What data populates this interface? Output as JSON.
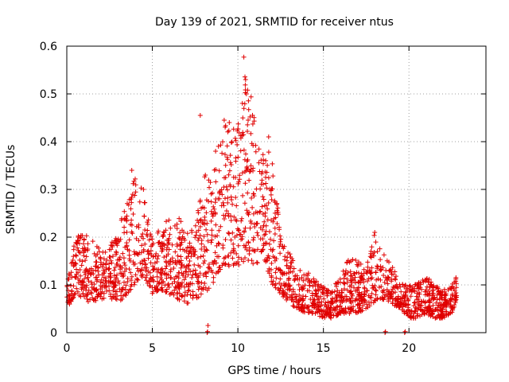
{
  "chart_data": {
    "type": "scatter",
    "title": "Day 139 of 2021, SRMTID for receiver ntus",
    "xlabel": "GPS time / hours",
    "ylabel": "SRMTID / TECUs",
    "xlim": [
      0,
      24.5
    ],
    "ylim": [
      0,
      0.6
    ],
    "x_ticks": [
      0,
      5,
      10,
      15,
      20
    ],
    "x_tick_labels": [
      "0",
      "5",
      "10",
      "15",
      "20"
    ],
    "y_ticks": [
      0,
      0.1,
      0.2,
      0.3,
      0.4,
      0.5,
      0.6
    ],
    "y_tick_labels": [
      "0",
      "0.1",
      "0.2",
      "0.3",
      "0.4",
      "0.5",
      "0.6"
    ],
    "grid": true,
    "marker": "+",
    "color": "#e00000",
    "series": [
      {
        "name": "SRMTID",
        "envelope": {
          "x": [
            0,
            0.5,
            1,
            1.5,
            2,
            2.5,
            3,
            3.5,
            4,
            4.5,
            5,
            5.5,
            6,
            6.5,
            7,
            7.5,
            8,
            8.5,
            9,
            9.5,
            10,
            10.5,
            11,
            11.5,
            12,
            12.5,
            13,
            13.5,
            14,
            14.5,
            15,
            15.5,
            16,
            16.5,
            17,
            17.5,
            18,
            18.5,
            19,
            19.5,
            20,
            20.5,
            21,
            21.5,
            22,
            22.5,
            22.8
          ],
          "low": [
            0.05,
            0.08,
            0.07,
            0.06,
            0.07,
            0.07,
            0.06,
            0.08,
            0.1,
            0.12,
            0.08,
            0.09,
            0.08,
            0.07,
            0.06,
            0.07,
            0.08,
            0.1,
            0.12,
            0.14,
            0.14,
            0.15,
            0.14,
            0.16,
            0.1,
            0.08,
            0.06,
            0.05,
            0.04,
            0.04,
            0.03,
            0.03,
            0.04,
            0.04,
            0.04,
            0.05,
            0.06,
            0.07,
            0.06,
            0.05,
            0.03,
            0.03,
            0.04,
            0.03,
            0.03,
            0.04,
            0.07
          ],
          "high": [
            0.1,
            0.2,
            0.21,
            0.2,
            0.17,
            0.18,
            0.22,
            0.27,
            0.33,
            0.3,
            0.2,
            0.23,
            0.24,
            0.25,
            0.21,
            0.22,
            0.33,
            0.35,
            0.44,
            0.43,
            0.45,
            0.57,
            0.44,
            0.37,
            0.41,
            0.2,
            0.17,
            0.14,
            0.13,
            0.11,
            0.1,
            0.09,
            0.12,
            0.16,
            0.15,
            0.14,
            0.21,
            0.17,
            0.14,
            0.11,
            0.1,
            0.11,
            0.12,
            0.1,
            0.09,
            0.1,
            0.12
          ]
        },
        "outliers": [
          {
            "x": 7.8,
            "y": 0.455
          },
          {
            "x": 8.7,
            "y": 0.38
          },
          {
            "x": 9.2,
            "y": 0.445
          },
          {
            "x": 9.5,
            "y": 0.44
          },
          {
            "x": 10.35,
            "y": 0.577
          },
          {
            "x": 10.45,
            "y": 0.53
          },
          {
            "x": 10.5,
            "y": 0.5
          },
          {
            "x": 10.6,
            "y": 0.445
          },
          {
            "x": 11.8,
            "y": 0.41
          },
          {
            "x": 3.8,
            "y": 0.34
          },
          {
            "x": 18.0,
            "y": 0.21
          },
          {
            "x": 8.25,
            "y": 0.015
          },
          {
            "x": 8.1,
            "y": 0.33
          }
        ],
        "zero_points": [
          8.2,
          18.6,
          19.75
        ]
      }
    ]
  }
}
